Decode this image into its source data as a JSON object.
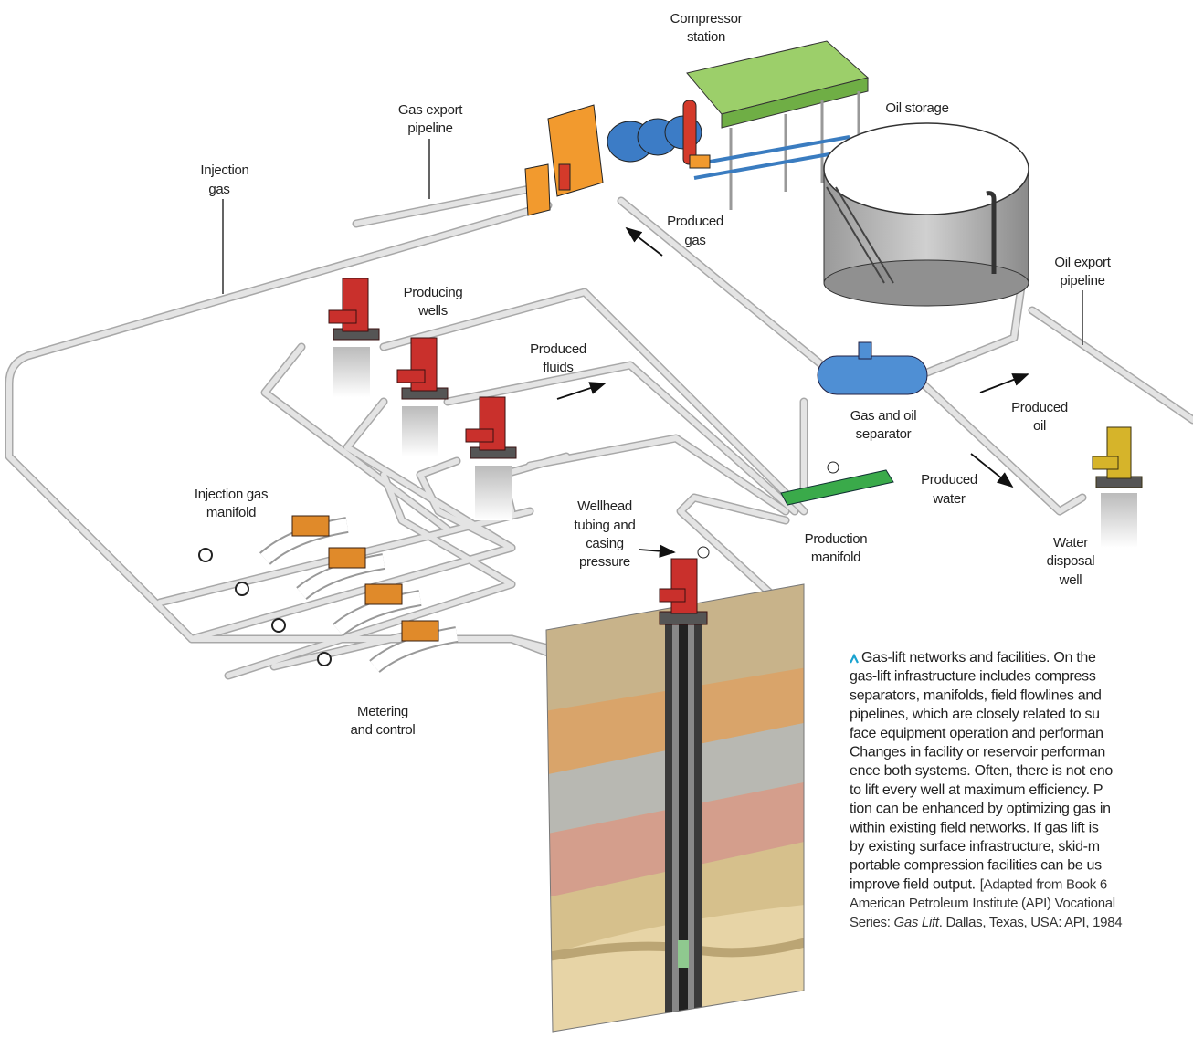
{
  "labels": {
    "compressor_station": [
      "Compressor",
      "station"
    ],
    "gas_export_pipeline": [
      "Gas export",
      "pipeline"
    ],
    "injection_gas": [
      "Injection",
      "gas"
    ],
    "oil_storage": [
      "Oil storage"
    ],
    "produced_gas": [
      "Produced",
      "gas"
    ],
    "oil_export_pipeline": [
      "Oil export",
      "pipeline"
    ],
    "producing_wells": [
      "Producing",
      "wells"
    ],
    "produced_fluids": [
      "Produced",
      "fluids"
    ],
    "gas_and_oil_separator": [
      "Gas and oil",
      "separator"
    ],
    "produced_oil": [
      "Produced",
      "oil"
    ],
    "produced_water": [
      "Produced",
      "water"
    ],
    "injection_gas_manifold": [
      "Injection gas",
      "manifold"
    ],
    "wellhead_pressure": [
      "Wellhead",
      "tubing and",
      "casing",
      "pressure"
    ],
    "production_manifold": [
      "Production",
      "manifold"
    ],
    "water_disposal_well": [
      "Water",
      "disposal",
      "well"
    ],
    "metering_and_control": [
      "Metering",
      "and control"
    ]
  },
  "caption": {
    "body": [
      "Gas-lift networks and facilities. On the",
      "gas-lift infrastructure includes compress",
      "separators, manifolds, field flowlines and",
      "pipelines, which are closely related to su",
      "face equipment operation and performan",
      "Changes in facility or reservoir performan",
      "ence both systems. Often, there is not eno",
      "to lift every well at maximum efficiency. P",
      "tion can be enhanced by optimizing gas in",
      "within existing field networks. If gas lift is",
      "by existing surface infrastructure, skid-m",
      "portable compression facilities can be us",
      "improve field output."
    ],
    "source": [
      "[Adapted from Book 6",
      "American Petroleum Institute (API) Vocational",
      "Series: ",
      "Gas Lift",
      ". Dallas, Texas, USA: API, 1984"
    ]
  }
}
